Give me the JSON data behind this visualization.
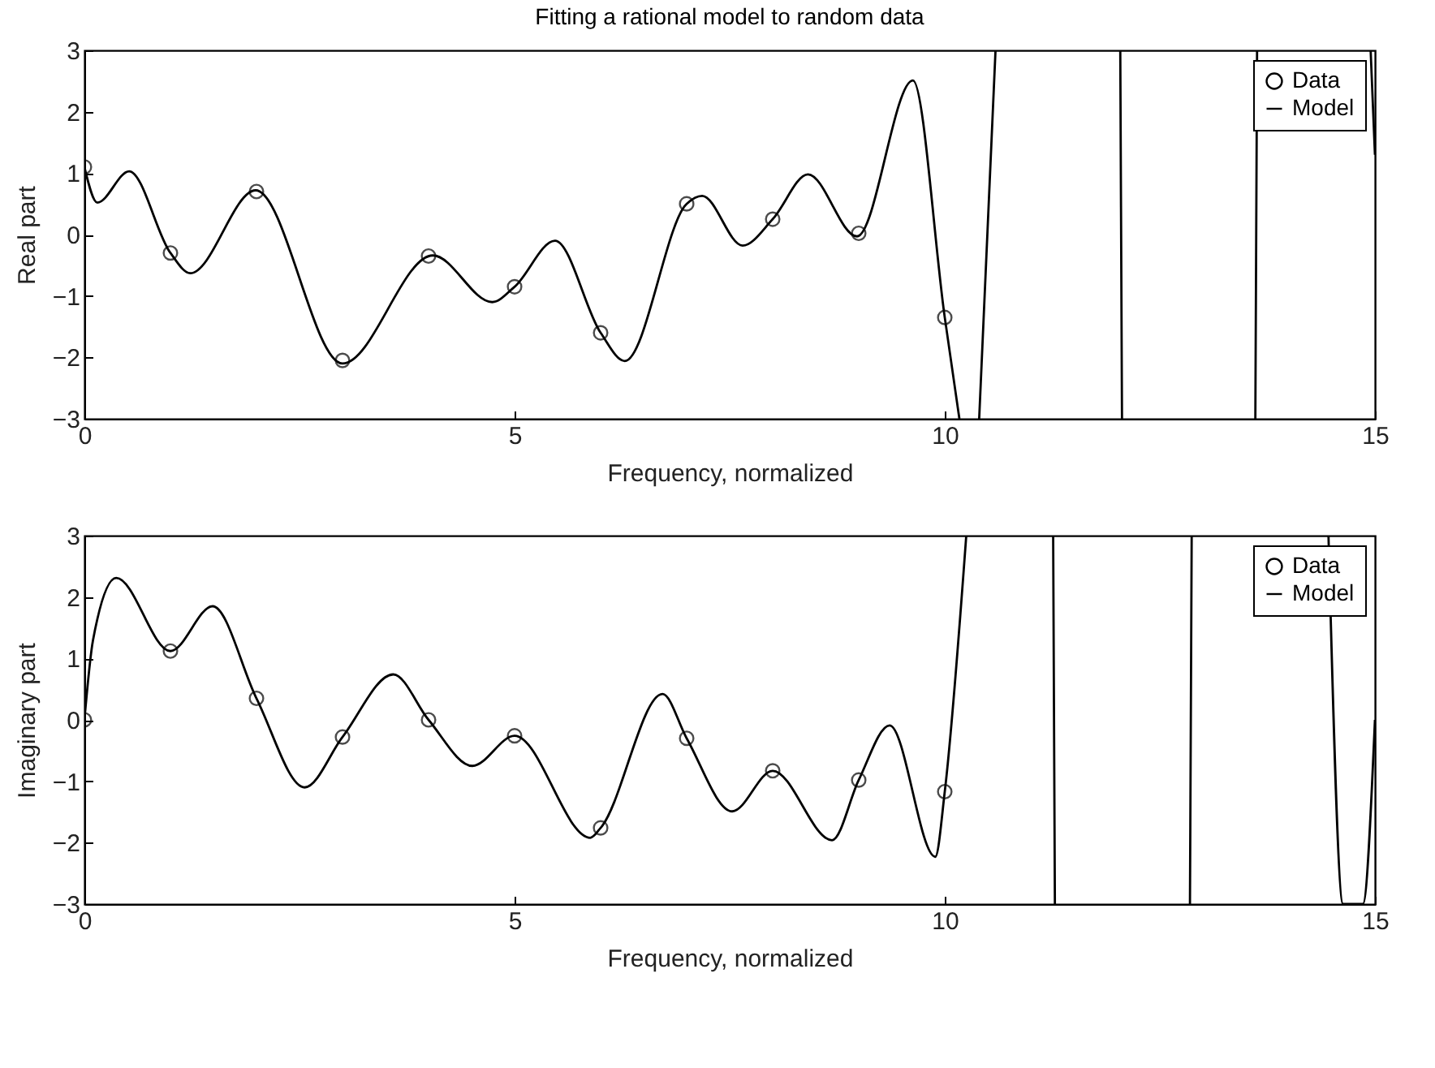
{
  "chart_data": [
    {
      "type": "line",
      "title": "Fitting a rational model to random data",
      "xlabel": "Frequency, normalized",
      "ylabel": "Real part",
      "xlim": [
        0,
        15
      ],
      "ylim": [
        -3,
        3
      ],
      "xticks": [
        0,
        5,
        10,
        15
      ],
      "yticks": [
        -3,
        -2,
        -1,
        0,
        1,
        2,
        3
      ],
      "legend": "top right",
      "series": [
        {
          "name": "Data",
          "type": "scatter",
          "marker": "circle",
          "color": "#000000",
          "x": [
            0,
            1,
            2,
            3,
            4,
            5,
            6,
            7,
            8,
            9,
            10
          ],
          "values": [
            1.1,
            -0.3,
            0.7,
            -2.05,
            -0.35,
            -0.85,
            -1.6,
            0.5,
            0.25,
            0.02,
            -1.35
          ]
        },
        {
          "name": "Model",
          "type": "line",
          "marker": "none",
          "color": "#000000",
          "x": [
            0,
            0.15,
            0.52,
            1,
            1.23,
            1.99,
            3,
            4.05,
            4.74,
            5,
            5.47,
            6,
            6.28,
            7,
            7.18,
            7.65,
            8,
            8.41,
            8.98,
            9.63,
            10,
            10.17,
            10.2,
            10.4,
            10.59,
            10.6,
            12.04,
            12.06,
            12.07,
            13.61,
            13.63,
            13.64,
            14.95,
            15
          ],
          "values": [
            1.1,
            0.52,
            1.03,
            -0.3,
            -0.63,
            0.72,
            -2.1,
            -0.34,
            -1.1,
            -0.85,
            -0.1,
            -1.6,
            -2.06,
            0.5,
            0.63,
            -0.18,
            0.25,
            0.98,
            -0.03,
            2.51,
            -1.35,
            -3,
            null,
            -3,
            3,
            null,
            3,
            -3,
            null,
            -3,
            3,
            null,
            3,
            1.3
          ]
        }
      ]
    },
    {
      "type": "line",
      "xlabel": "Frequency, normalized",
      "ylabel": "Imaginary part",
      "xlim": [
        0,
        15
      ],
      "ylim": [
        -3,
        3
      ],
      "xticks": [
        0,
        5,
        10,
        15
      ],
      "yticks": [
        -3,
        -2,
        -1,
        0,
        1,
        2,
        3
      ],
      "legend": "top right",
      "series": [
        {
          "name": "Data",
          "type": "scatter",
          "marker": "circle",
          "color": "#000000",
          "x": [
            0,
            1,
            2,
            3,
            4,
            5,
            6,
            7,
            8,
            9,
            10
          ],
          "values": [
            0,
            1.12,
            0.35,
            -0.28,
            0,
            -0.26,
            -1.76,
            -0.3,
            -0.83,
            -0.98,
            -1.17
          ]
        },
        {
          "name": "Model",
          "type": "line",
          "marker": "none",
          "color": "#000000",
          "x": [
            0,
            0.1,
            0.37,
            1,
            1.49,
            2,
            2.56,
            3,
            3.59,
            4,
            4.51,
            5,
            5.88,
            6,
            6.72,
            7,
            7.53,
            8,
            8.69,
            9,
            9.36,
            9.89,
            10,
            10.25,
            10.26,
            11.26,
            11.28,
            11.29,
            12.85,
            12.87,
            12.88,
            14.46,
            14.63,
            14.86,
            15
          ],
          "values": [
            0,
            1.3,
            2.31,
            1.12,
            1.85,
            0.35,
            -1.1,
            -0.28,
            0.74,
            0,
            -0.75,
            -0.26,
            -1.92,
            -1.76,
            0.42,
            -0.3,
            -1.49,
            -0.83,
            -1.96,
            -0.98,
            -0.09,
            -2.23,
            -1.17,
            3,
            null,
            3,
            -3,
            null,
            -3,
            3,
            null,
            3,
            -3,
            -3,
            0
          ]
        }
      ]
    }
  ]
}
